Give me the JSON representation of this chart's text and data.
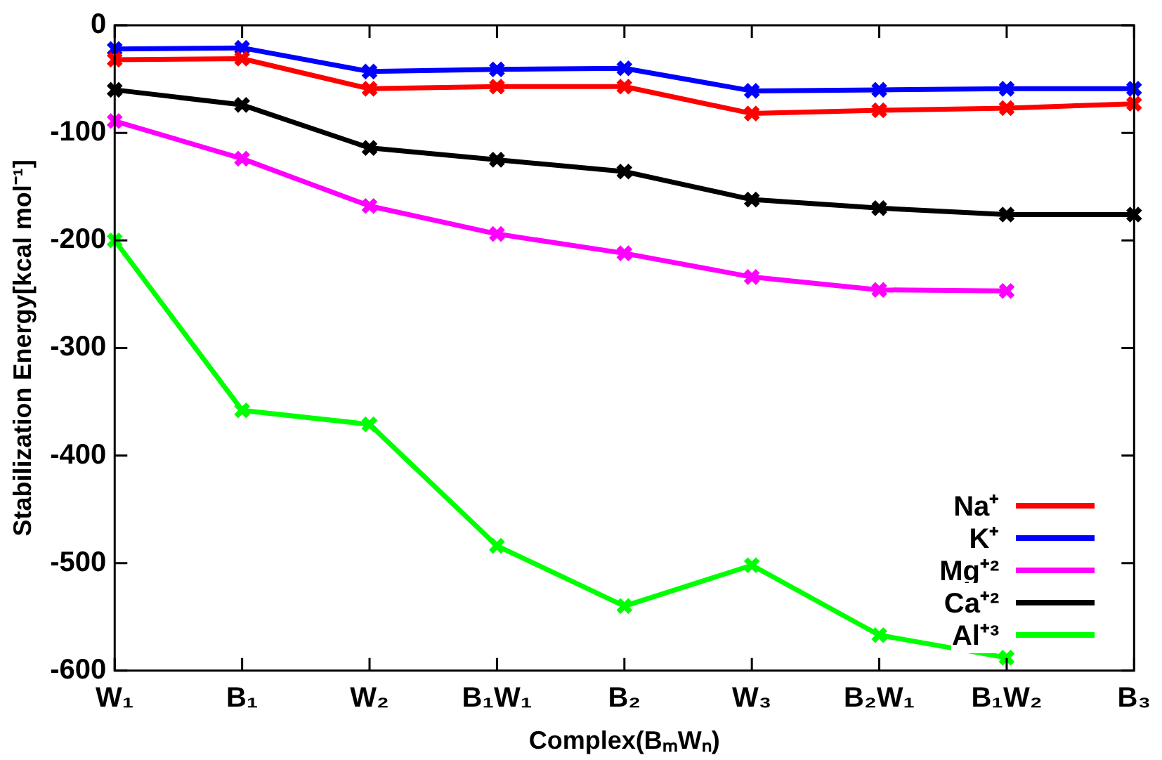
{
  "chart_data": {
    "type": "line",
    "xlabel": "Complex(BₘWₙ)",
    "ylabel": "Stabilization Energy[kcal mol⁻¹]",
    "categories": [
      "W₁",
      "B₁",
      "W₂",
      "B₁W₁",
      "B₂",
      "W₃",
      "B₂W₁",
      "B₁W₂",
      "B₃"
    ],
    "series": [
      {
        "name": "Na⁺",
        "color": "#ff0000",
        "values": [
          -32,
          -31,
          -59,
          -57,
          -57,
          -82,
          -79,
          -77,
          -73
        ]
      },
      {
        "name": "K⁺",
        "color": "#0000ff",
        "values": [
          -22,
          -21,
          -43,
          -41,
          -40,
          -61,
          -60,
          -59,
          -59
        ]
      },
      {
        "name": "Mg⁺²",
        "color": "#ff00ff",
        "values": [
          -89,
          -124,
          -168,
          -194,
          -212,
          -234,
          -246,
          -247,
          null
        ]
      },
      {
        "name": "Ca⁺²",
        "color": "#000000",
        "values": [
          -60,
          -74,
          -114,
          -125,
          -136,
          -162,
          -170,
          -176,
          -176
        ]
      },
      {
        "name": "Al⁺³",
        "color": "#00ff00",
        "values": [
          -200,
          -358,
          -371,
          -484,
          -540,
          -502,
          -567,
          -588,
          null
        ]
      }
    ],
    "ylim": [
      -600,
      0
    ],
    "yticks": [
      -600,
      -500,
      -400,
      -300,
      -200,
      -100,
      0
    ],
    "legend": "bottom right",
    "marker": "cross",
    "line_style": "solid"
  }
}
